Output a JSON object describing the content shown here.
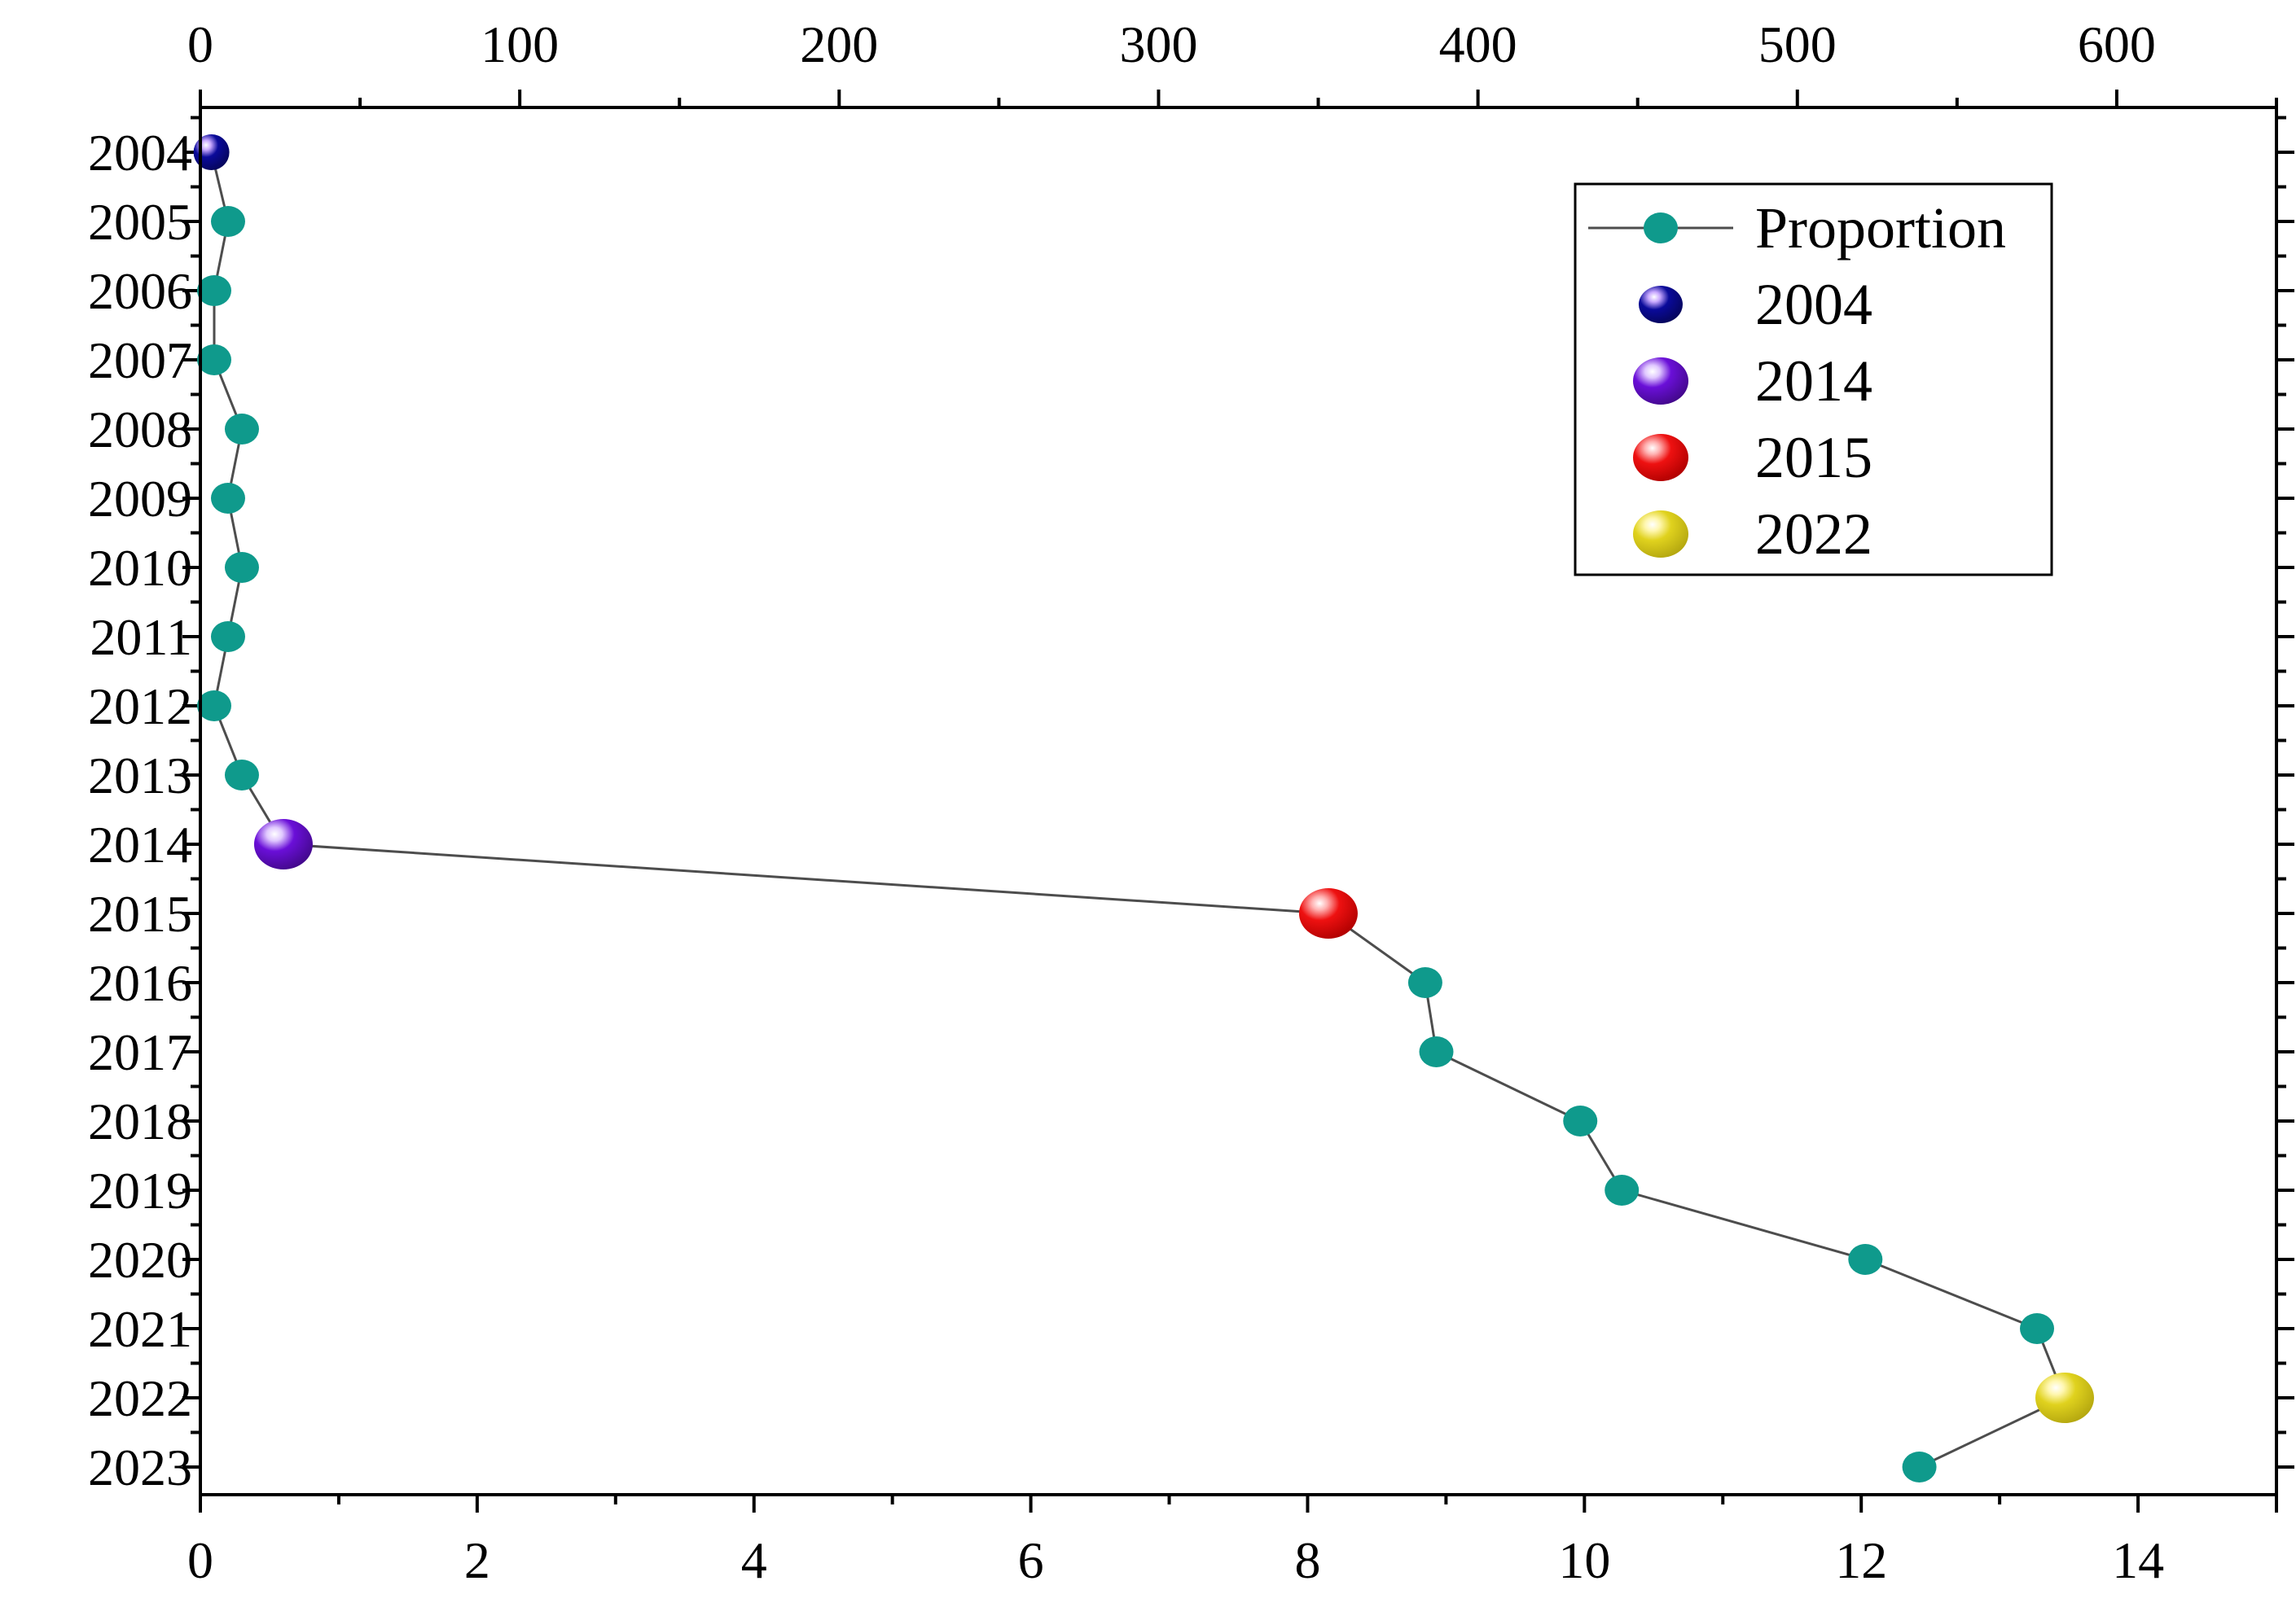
{
  "chart_data": {
    "type": "scatter",
    "title": "",
    "xlabel": "",
    "ylabel": "",
    "x_bottom": {
      "range": [
        0,
        15
      ],
      "major_ticks": [
        0,
        2,
        4,
        6,
        8,
        10,
        12,
        14
      ],
      "major_labels": [
        "0",
        "2",
        "4",
        "6",
        "8",
        "10",
        "12",
        "14"
      ]
    },
    "x_top": {
      "range": [
        0,
        650
      ],
      "major_ticks": [
        0,
        100,
        200,
        300,
        400,
        500,
        600
      ],
      "major_labels": [
        "0",
        "100",
        "200",
        "300",
        "400",
        "500",
        "600"
      ]
    },
    "y": {
      "categories": [
        "2004",
        "2005",
        "2006",
        "2007",
        "2008",
        "2009",
        "2010",
        "2011",
        "2012",
        "2013",
        "2014",
        "2015",
        "2016",
        "2017",
        "2018",
        "2019",
        "2020",
        "2021",
        "2022",
        "2023"
      ],
      "inverted": true
    },
    "series": [
      {
        "name": "Proportion",
        "color": "#0f9a8c",
        "line_color": "#4d4d4d",
        "points": [
          {
            "year": "2004",
            "value": 0.08
          },
          {
            "year": "2005",
            "value": 0.2
          },
          {
            "year": "2006",
            "value": 0.1
          },
          {
            "year": "2007",
            "value": 0.1
          },
          {
            "year": "2008",
            "value": 0.3
          },
          {
            "year": "2009",
            "value": 0.2
          },
          {
            "year": "2010",
            "value": 0.3
          },
          {
            "year": "2011",
            "value": 0.2
          },
          {
            "year": "2012",
            "value": 0.1
          },
          {
            "year": "2013",
            "value": 0.3
          },
          {
            "year": "2014",
            "value": 0.6
          },
          {
            "year": "2015",
            "value": 8.15
          },
          {
            "year": "2016",
            "value": 8.85
          },
          {
            "year": "2017",
            "value": 8.93
          },
          {
            "year": "2018",
            "value": 9.97
          },
          {
            "year": "2019",
            "value": 10.27
          },
          {
            "year": "2020",
            "value": 12.03
          },
          {
            "year": "2021",
            "value": 13.27
          },
          {
            "year": "2022",
            "value": 13.47
          },
          {
            "year": "2023",
            "value": 12.42
          }
        ]
      }
    ],
    "highlights": [
      {
        "name": "2004",
        "year": "2004",
        "value": 0.08,
        "color": "#0a0a9a"
      },
      {
        "name": "2014",
        "year": "2014",
        "value": 0.6,
        "color": "#6a0fd8"
      },
      {
        "name": "2015",
        "year": "2015",
        "value": 8.15,
        "color": "#ee1111"
      },
      {
        "name": "2022",
        "year": "2022",
        "value": 13.47,
        "color": "#e0d21e"
      }
    ],
    "legend": {
      "placement": "top-right",
      "entries": [
        "Proportion",
        "2004",
        "2014",
        "2015",
        "2022"
      ]
    },
    "grid": false
  }
}
